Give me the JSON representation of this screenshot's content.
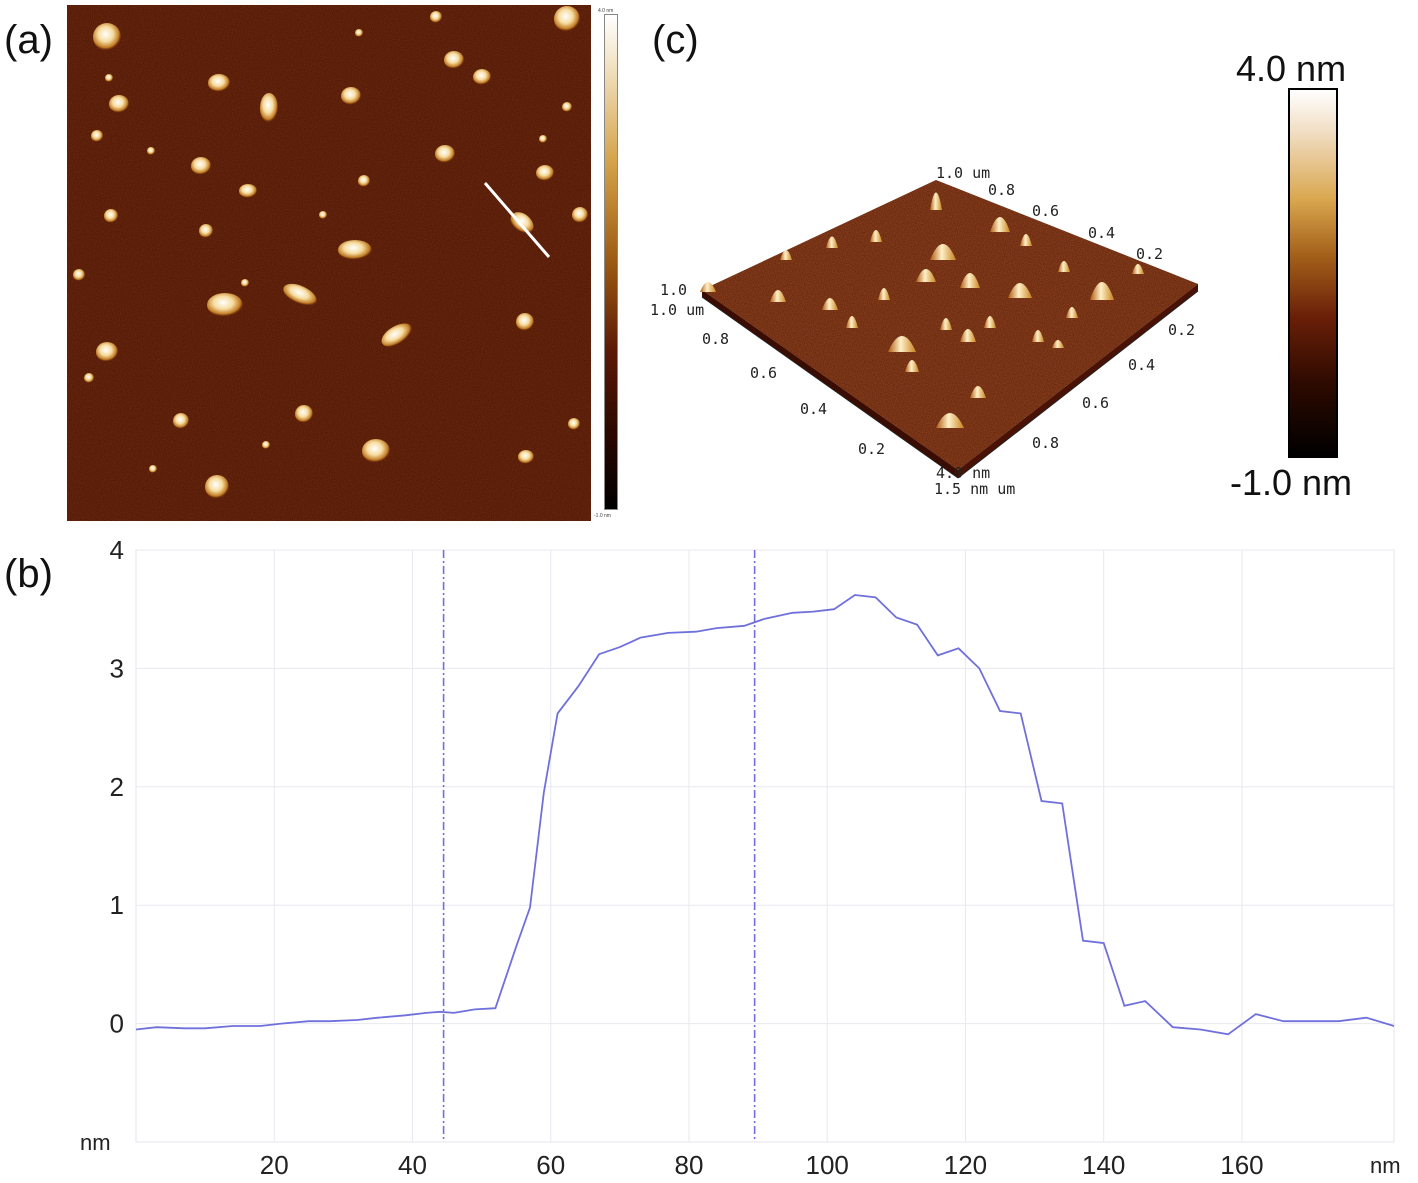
{
  "panels": {
    "a": "(a)",
    "b": "(b)",
    "c": "(c)"
  },
  "colorbar": {
    "max_label": "4.0 nm",
    "min_label": "-1.0 nm",
    "small_max": "4.0 nm",
    "small_min": "-1.0 nm"
  },
  "afm_3d": {
    "axis_left": [
      "1.0",
      "0.8",
      "0.6",
      "0.4",
      "0.2"
    ],
    "axis_left_start": "1.0 um",
    "axis_right": [
      "0.2",
      "0.4",
      "0.6",
      "0.8"
    ],
    "axis_back": [
      "0.8",
      "0.6",
      "0.4",
      "0.2"
    ],
    "top_label": "1.0 um",
    "z_top": "1.0",
    "z_bottom": "4.0 nm",
    "corner_label": "1.5 nm um"
  },
  "chart_data": {
    "type": "line",
    "xlabel": "nm",
    "ylabel": "nm",
    "xlim": [
      0,
      182
    ],
    "ylim": [
      -1.0,
      4.0
    ],
    "xticks": [
      20,
      40,
      60,
      80,
      100,
      120,
      140,
      160
    ],
    "yticks": [
      0,
      1,
      2,
      3,
      4
    ],
    "grid": true,
    "markers": [
      44.5,
      89.5
    ],
    "series": [
      {
        "color": "#7070dd",
        "x": [
          0,
          3,
          7,
          10,
          14,
          18,
          21,
          25,
          28,
          32,
          35,
          39,
          42,
          44,
          46,
          49,
          52,
          55,
          57,
          59,
          61,
          64,
          67,
          70,
          73,
          77,
          81,
          84,
          88,
          91,
          95,
          98,
          101,
          104,
          107,
          110,
          113,
          116,
          119,
          122,
          125,
          128,
          131,
          134,
          137,
          140,
          143,
          146,
          150,
          154,
          158,
          162,
          166,
          170,
          174,
          178,
          182
        ],
        "values": [
          -0.05,
          -0.03,
          -0.04,
          -0.04,
          -0.02,
          -0.02,
          0.0,
          0.02,
          0.02,
          0.03,
          0.05,
          0.07,
          0.09,
          0.1,
          0.09,
          0.12,
          0.13,
          0.65,
          0.98,
          1.95,
          2.62,
          2.85,
          3.12,
          3.18,
          3.26,
          3.3,
          3.31,
          3.34,
          3.36,
          3.42,
          3.47,
          3.48,
          3.5,
          3.62,
          3.6,
          3.43,
          3.37,
          3.11,
          3.17,
          3.0,
          2.64,
          2.62,
          1.88,
          1.86,
          0.7,
          0.68,
          0.15,
          0.19,
          -0.03,
          -0.05,
          -0.09,
          0.08,
          0.02,
          0.02,
          0.02,
          0.05,
          -0.02
        ]
      }
    ]
  }
}
